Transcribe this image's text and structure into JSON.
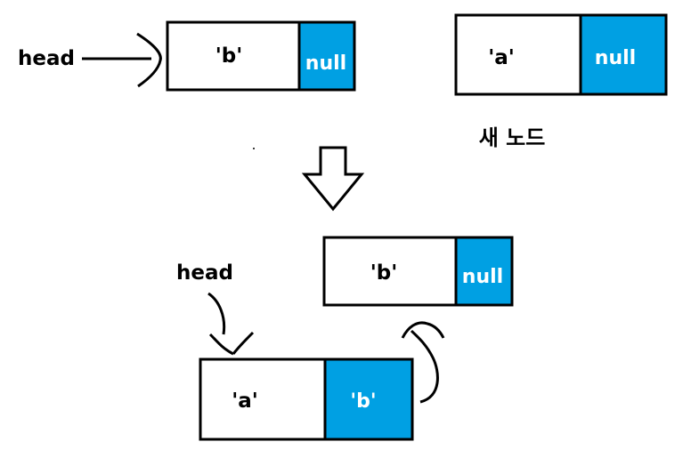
{
  "colors": {
    "pointer_fill": "#00a0e3",
    "stroke": "#000000",
    "background": "#ffffff"
  },
  "top": {
    "head_label": "head",
    "list_node": {
      "value": "'b'",
      "next": "null"
    },
    "new_node": {
      "value": "'a'",
      "next": "null"
    },
    "new_node_caption": "새 노드"
  },
  "bottom": {
    "head_label": "head",
    "node_b": {
      "value": "'b'",
      "next": "null"
    },
    "node_a": {
      "value": "'a'",
      "next": "'b'"
    }
  }
}
